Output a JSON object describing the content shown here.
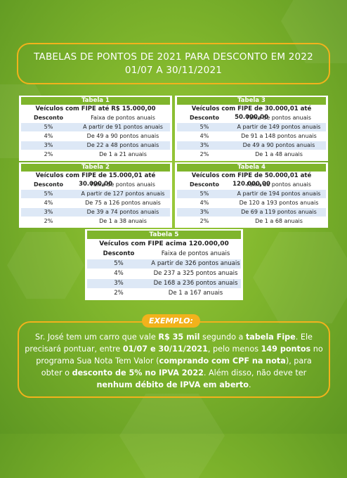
{
  "title": {
    "line1": "TABELAS DE PONTOS DE 2021 PARA DESCONTO EM 2022",
    "line2": "01/07 A 30/11/2021"
  },
  "column_headers": {
    "discount": "Desconto",
    "range": "Faixa de pontos anuais"
  },
  "tables": [
    {
      "name": "Tabela 1",
      "vehicles": "Veículos com FIPE até R$ 15.000,00",
      "rows": [
        {
          "discount": "5%",
          "range": "A partir de 91 pontos anuais"
        },
        {
          "discount": "4%",
          "range": "De 49 a 90 pontos anuais"
        },
        {
          "discount": "3%",
          "range": "De 22 a 48 pontos anuais"
        },
        {
          "discount": "2%",
          "range": "De 1 a 21 anuais"
        }
      ]
    },
    {
      "name": "Tabela 3",
      "vehicles": "Veículos com FIPE de 30.000,01 até 50.000,00",
      "rows": [
        {
          "discount": "5%",
          "range": "A partir de 149 pontos anuais"
        },
        {
          "discount": "4%",
          "range": "De 91 a 148 pontos anuais"
        },
        {
          "discount": "3%",
          "range": "De 49 a 90 pontos anuais"
        },
        {
          "discount": "2%",
          "range": "De 1 a 48 anuais"
        }
      ]
    },
    {
      "name": "Tabela 2",
      "vehicles": "Veículos com FIPE de 15.000,01 até 30.000,00",
      "rows": [
        {
          "discount": "5%",
          "range": "A partir de 127 pontos anuais"
        },
        {
          "discount": "4%",
          "range": "De 75 a 126 pontos anuais"
        },
        {
          "discount": "3%",
          "range": "De 39 a 74 pontos anuais"
        },
        {
          "discount": "2%",
          "range": "De 1 a 38 anuais"
        }
      ]
    },
    {
      "name": "Tabela 4",
      "vehicles": "Veículos com FIPE de 50.000,01 até 120.000,00",
      "rows": [
        {
          "discount": "5%",
          "range": "A partir de 194 pontos anuais"
        },
        {
          "discount": "4%",
          "range": "De 120 a 193 pontos anuais"
        },
        {
          "discount": "3%",
          "range": "De 69 a 119 pontos anuais"
        },
        {
          "discount": "2%",
          "range": "De 1 a 68 anuais"
        }
      ]
    },
    {
      "name": "Tabela 5",
      "vehicles": "Veículos com FIPE acima 120.000,00",
      "rows": [
        {
          "discount": "5%",
          "range": "A partir de 326 pontos anuais"
        },
        {
          "discount": "4%",
          "range": "De 237 a 325 pontos anuais"
        },
        {
          "discount": "3%",
          "range": "De 168 a 236 pontos anuais"
        },
        {
          "discount": "2%",
          "range": "De 1 a 167 anuais"
        }
      ]
    }
  ],
  "example": {
    "label": "EXEMPLO:",
    "segments": [
      {
        "text": "Sr. José tem um carro que vale ",
        "bold": false
      },
      {
        "text": "R$ 35 mil",
        "bold": true
      },
      {
        "text": " segundo a ",
        "bold": false
      },
      {
        "text": "tabela Fipe",
        "bold": true
      },
      {
        "text": ". Ele precisará pontuar, entre ",
        "bold": false
      },
      {
        "text": "01/07 e 30/11/2021",
        "bold": true
      },
      {
        "text": ", pelo menos ",
        "bold": false
      },
      {
        "text": "149 pontos",
        "bold": true
      },
      {
        "text": " no programa Sua Nota Tem Valor (",
        "bold": false
      },
      {
        "text": "comprando com CPF na nota",
        "bold": true
      },
      {
        "text": "), para obter o ",
        "bold": false
      },
      {
        "text": "desconto de 5% no IPVA 2022",
        "bold": true
      },
      {
        "text": ". Além disso, não deve ter ",
        "bold": false
      },
      {
        "text": "nenhum débito de IPVA em aberto",
        "bold": true
      },
      {
        "text": ".",
        "bold": false
      }
    ]
  },
  "colors": {
    "accent": "#f2b21c",
    "table_header": "#7fb52c",
    "row_alt": "#dde8f6"
  }
}
